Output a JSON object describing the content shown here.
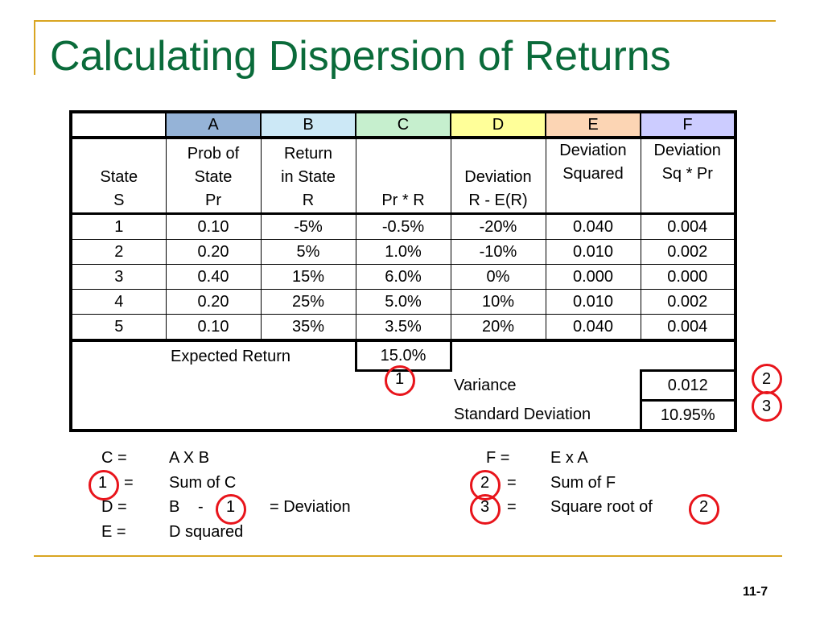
{
  "slide": {
    "title": "Calculating Dispersion of Returns",
    "page_number": "11-7"
  },
  "table": {
    "column_letters": [
      "A",
      "B",
      "C",
      "D",
      "E",
      "F"
    ],
    "header": {
      "state": [
        "State",
        "S"
      ],
      "A": [
        "Prob of",
        "State",
        "Pr"
      ],
      "B": [
        "Return",
        "in State",
        "R"
      ],
      "C": [
        "Pr * R"
      ],
      "D": [
        "Deviation",
        "R - E(R)"
      ],
      "E": [
        "Deviation",
        "Squared"
      ],
      "F": [
        "Deviation",
        "Sq * Pr"
      ]
    },
    "rows": [
      [
        "1",
        "0.10",
        "-5%",
        "-0.5%",
        "-20%",
        "0.040",
        "0.004"
      ],
      [
        "2",
        "0.20",
        "5%",
        "1.0%",
        "-10%",
        "0.010",
        "0.002"
      ],
      [
        "3",
        "0.40",
        "15%",
        "6.0%",
        "0%",
        "0.000",
        "0.000"
      ],
      [
        "4",
        "0.20",
        "25%",
        "5.0%",
        "10%",
        "0.010",
        "0.002"
      ],
      [
        "5",
        "0.10",
        "35%",
        "3.5%",
        "20%",
        "0.040",
        "0.004"
      ]
    ],
    "expected_return_label": "Expected Return",
    "expected_return_value": "15.0%",
    "marker_1": "1",
    "variance_label": "Variance",
    "variance_value": "0.012",
    "marker_2": "2",
    "std_dev_label": "Standard Deviation",
    "std_dev_value": "10.95%",
    "marker_3": "3"
  },
  "legend": {
    "c_label": "C =",
    "c_formula": "A X B",
    "one_label": "1",
    "one_eq": "=",
    "one_formula": "Sum of C",
    "d_label": "D =",
    "d_b": "B",
    "d_minus": "-",
    "d_one": "1",
    "d_eq": "= Deviation",
    "e_label": "E =",
    "e_formula": "D squared",
    "f_label": "F =",
    "f_formula": "E x A",
    "two_label": "2",
    "two_eq": "=",
    "two_formula": "Sum of F",
    "three_label": "3",
    "three_eq": "=",
    "three_formula": "Square root of",
    "three_ref": "2"
  }
}
